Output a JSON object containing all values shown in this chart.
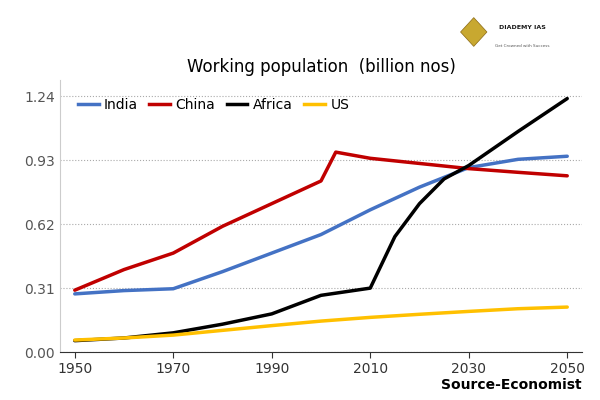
{
  "title": "Working population  (billion nos)",
  "source_text": "Source-Economist",
  "x_ticks": [
    1950,
    1970,
    1990,
    2010,
    2030,
    2050
  ],
  "ylim": [
    0.0,
    1.32
  ],
  "yticks": [
    0.0,
    0.31,
    0.62,
    0.93,
    1.24
  ],
  "series": {
    "India": {
      "color": "#4472c4",
      "x": [
        1950,
        1955,
        1960,
        1970,
        1980,
        1990,
        2000,
        2010,
        2020,
        2030,
        2040,
        2050
      ],
      "y": [
        0.282,
        0.29,
        0.298,
        0.307,
        0.39,
        0.48,
        0.57,
        0.69,
        0.8,
        0.895,
        0.935,
        0.95
      ]
    },
    "China": {
      "color": "#c00000",
      "x": [
        1950,
        1960,
        1970,
        1980,
        1990,
        2000,
        2003,
        2010,
        2020,
        2030,
        2040,
        2050
      ],
      "y": [
        0.3,
        0.4,
        0.48,
        0.61,
        0.72,
        0.83,
        0.97,
        0.94,
        0.915,
        0.89,
        0.872,
        0.855
      ]
    },
    "Africa": {
      "color": "#000000",
      "x": [
        1950,
        1960,
        1970,
        1980,
        1990,
        2000,
        2010,
        2015,
        2020,
        2025,
        2030,
        2040,
        2050
      ],
      "y": [
        0.055,
        0.068,
        0.093,
        0.135,
        0.185,
        0.275,
        0.31,
        0.56,
        0.72,
        0.84,
        0.905,
        1.07,
        1.23
      ]
    },
    "US": {
      "color": "#ffc000",
      "x": [
        1950,
        1960,
        1970,
        1980,
        1990,
        2000,
        2010,
        2020,
        2030,
        2040,
        2050
      ],
      "y": [
        0.058,
        0.068,
        0.082,
        0.105,
        0.128,
        0.15,
        0.168,
        0.183,
        0.197,
        0.21,
        0.218
      ]
    }
  },
  "legend_order": [
    "India",
    "China",
    "Africa",
    "US"
  ],
  "line_width": 2.5,
  "title_fontsize": 12,
  "tick_fontsize": 10,
  "legend_fontsize": 10,
  "source_fontsize": 10
}
